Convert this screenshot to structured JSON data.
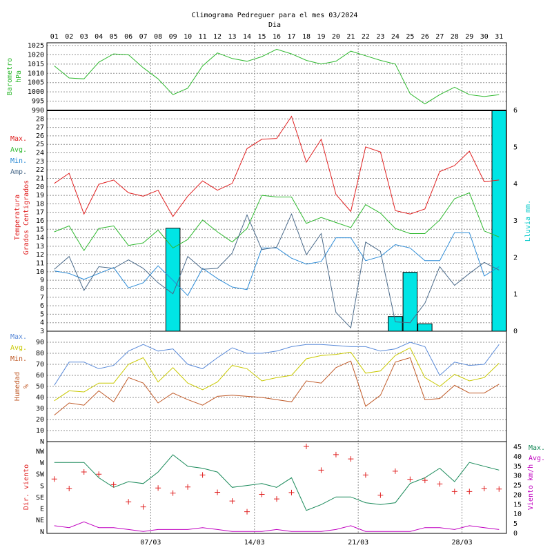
{
  "title": "Climograma Pedreguer para el mes 03/2024",
  "xaxis_label": "Dia",
  "colors": {
    "pressure": "#2eb82e",
    "temp_max": "#e02020",
    "temp_avg": "#2eb82e",
    "temp_min": "#2a8ad6",
    "temp_amp": "#4a6a8a",
    "rain_fill": "#00e5e5",
    "hum_max": "#5a8ad8",
    "hum_avg": "#c8c800",
    "hum_min": "#c05a28",
    "wind_dir": "#e02020",
    "wind_max": "#1a8a5a",
    "wind_avg": "#c000c0",
    "grid": "#909090",
    "frame": "#000000"
  },
  "chart_data": [
    {
      "type": "line",
      "name": "pressure",
      "title": "Climograma Pedreguer para el mes 03/2024",
      "xlabel": "Dia",
      "ylabel": "Barometro hPa",
      "x": [
        "01",
        "02",
        "03",
        "04",
        "05",
        "06",
        "07",
        "08",
        "09",
        "10",
        "11",
        "12",
        "13",
        "14",
        "15",
        "16",
        "17",
        "18",
        "19",
        "20",
        "21",
        "22",
        "23",
        "24",
        "25",
        "26",
        "27",
        "28",
        "29",
        "30",
        "31"
      ],
      "ylim": [
        990,
        1025
      ],
      "yticks": [
        990,
        995,
        1000,
        1005,
        1010,
        1015,
        1020,
        1025
      ],
      "series": [
        {
          "name": "Barometro",
          "values": [
            1014,
            1007.5,
            1007,
            1016,
            1020.5,
            1020,
            1013,
            1007,
            998.5,
            1002,
            1014,
            1021,
            1018,
            1016.5,
            1019,
            1023,
            1020.5,
            1017,
            1015,
            1016.5,
            1022,
            1019.5,
            1017,
            1015,
            999,
            993.5,
            998.5,
            1002.5,
            998.5,
            997.5,
            998.5
          ]
        }
      ]
    },
    {
      "type": "line",
      "name": "temperature",
      "ylabel": "Temperatura Grados Centigrados",
      "y2label": "Lluvia mm.",
      "x": [
        "01",
        "02",
        "03",
        "04",
        "05",
        "06",
        "07",
        "08",
        "09",
        "10",
        "11",
        "12",
        "13",
        "14",
        "15",
        "16",
        "17",
        "18",
        "19",
        "20",
        "21",
        "22",
        "23",
        "24",
        "25",
        "26",
        "27",
        "28",
        "29",
        "30",
        "31"
      ],
      "ylim": [
        3,
        29
      ],
      "y2lim": [
        0,
        6
      ],
      "yticks": [
        3,
        4,
        5,
        6,
        7,
        8,
        9,
        10,
        11,
        12,
        13,
        14,
        15,
        16,
        17,
        18,
        19,
        20,
        21,
        22,
        23,
        24,
        25,
        26,
        27,
        28
      ],
      "y2ticks": [
        0,
        1,
        2,
        3,
        4,
        5,
        6
      ],
      "legend": [
        "Max.",
        "Avg.",
        "Min.",
        "Amp."
      ],
      "series": [
        {
          "name": "Max.",
          "values": [
            20.4,
            21.6,
            16.8,
            20.3,
            20.8,
            19.3,
            18.9,
            19.6,
            16.5,
            18.9,
            20.7,
            19.6,
            20.4,
            24.5,
            25.6,
            25.7,
            28.3,
            22.9,
            25.6,
            19.1,
            17.1,
            24.7,
            24.1,
            17.2,
            16.8,
            17.4,
            21.8,
            22.5,
            24.2,
            20.6,
            20.8
          ]
        },
        {
          "name": "Avg.",
          "values": [
            14.7,
            15.4,
            12.5,
            15.1,
            15.4,
            13.1,
            13.4,
            14.9,
            12.8,
            13.8,
            16.1,
            14.7,
            13.5,
            15.1,
            19.0,
            18.8,
            18.8,
            15.7,
            16.4,
            15.8,
            15.2,
            17.9,
            16.9,
            15.1,
            14.5,
            14.5,
            16.1,
            18.6,
            19.3,
            14.8,
            14.1
          ]
        },
        {
          "name": "Min.",
          "values": [
            10.1,
            9.8,
            9.1,
            9.8,
            10.5,
            8.1,
            8.7,
            10.7,
            9.0,
            7.2,
            10.4,
            9.2,
            8.2,
            7.9,
            12.8,
            12.8,
            11.6,
            10.9,
            11.2,
            14.0,
            14.0,
            11.3,
            11.8,
            13.2,
            12.8,
            11.3,
            11.3,
            14.6,
            14.6,
            9.5,
            10.6
          ]
        },
        {
          "name": "Amp.",
          "values": [
            10.3,
            11.8,
            7.8,
            10.6,
            10.4,
            11.4,
            10.4,
            8.7,
            7.4,
            11.8,
            10.3,
            10.4,
            12.2,
            16.7,
            12.6,
            12.9,
            16.8,
            12.0,
            14.5,
            5.2,
            3.4,
            13.5,
            12.4,
            4.1,
            4.0,
            6.3,
            10.6,
            8.4,
            9.8,
            11.1,
            10.2
          ]
        }
      ],
      "bars": {
        "name": "Lluvia",
        "values": [
          0,
          0,
          0,
          0,
          0,
          0,
          0,
          0,
          2.8,
          0,
          0,
          0,
          0,
          0,
          0,
          0,
          0,
          0,
          0,
          0,
          0,
          0,
          0,
          0.4,
          1.6,
          0.2,
          0,
          0,
          0,
          0,
          6.0
        ]
      }
    },
    {
      "type": "line",
      "name": "humidity",
      "ylabel": "Humedad %",
      "x": [
        "01",
        "02",
        "03",
        "04",
        "05",
        "06",
        "07",
        "08",
        "09",
        "10",
        "11",
        "12",
        "13",
        "14",
        "15",
        "16",
        "17",
        "18",
        "19",
        "20",
        "21",
        "22",
        "23",
        "24",
        "25",
        "26",
        "27",
        "28",
        "29",
        "30",
        "31"
      ],
      "ylim": [
        0,
        100
      ],
      "yticks": [
        10,
        20,
        30,
        40,
        50,
        60,
        70,
        80,
        90
      ],
      "legend": [
        "Max.",
        "Avg.",
        "Min."
      ],
      "series": [
        {
          "name": "Max.",
          "values": [
            51,
            72,
            72,
            66,
            69,
            82,
            88,
            82,
            84,
            70,
            66,
            76,
            85,
            80,
            80,
            82,
            86,
            88,
            88,
            87,
            86,
            86,
            82,
            84,
            90,
            86,
            60,
            72,
            69,
            70,
            88
          ]
        },
        {
          "name": "Avg.",
          "values": [
            37,
            46,
            45,
            53,
            53,
            70,
            76,
            54,
            67,
            53,
            47,
            54,
            69,
            66,
            55,
            58,
            60,
            75,
            78,
            79,
            81,
            62,
            64,
            78,
            85,
            58,
            50,
            61,
            55,
            58,
            71
          ]
        },
        {
          "name": "Min.",
          "values": [
            24,
            35,
            33,
            46,
            36,
            58,
            53,
            35,
            44,
            38,
            33,
            41,
            42,
            41,
            40,
            38,
            36,
            55,
            53,
            67,
            73,
            32,
            42,
            72,
            76,
            38,
            39,
            51,
            44,
            44,
            52
          ]
        }
      ]
    },
    {
      "type": "scatter",
      "name": "wind",
      "ylabel": "Dir. viento",
      "y2label": "Viento km/h",
      "x": [
        "01",
        "02",
        "03",
        "04",
        "05",
        "06",
        "07",
        "08",
        "09",
        "10",
        "11",
        "12",
        "13",
        "14",
        "15",
        "16",
        "17",
        "18",
        "19",
        "20",
        "21",
        "22",
        "23",
        "24",
        "25",
        "26",
        "27",
        "28",
        "29",
        "30",
        "31"
      ],
      "xticks": [
        "07/03",
        "14/03",
        "21/03",
        "28/03"
      ],
      "ycategories": [
        "N",
        "NE",
        "E",
        "SE",
        "S",
        "SW",
        "W",
        "NW"
      ],
      "ylim": [
        0,
        360
      ],
      "y2lim": [
        0,
        45
      ],
      "y2ticks": [
        0,
        5,
        10,
        15,
        20,
        25,
        30,
        35,
        40,
        45
      ],
      "legend": [
        "Max.",
        "Avg."
      ],
      "direction_degrees": [
        213,
        176,
        241,
        232,
        191,
        124,
        104,
        178,
        158,
        182,
        229,
        161,
        127,
        85,
        153,
        135,
        160,
        341,
        248,
        309,
        292,
        229,
        150,
        244,
        212,
        208,
        194,
        164,
        164,
        176,
        174
      ],
      "series": [
        {
          "name": "Max.",
          "values": [
            37,
            37,
            37,
            29,
            24,
            27,
            26,
            32,
            41,
            35,
            34,
            32,
            24,
            25,
            26,
            24,
            29,
            12,
            15,
            19,
            19,
            16,
            15,
            16,
            26,
            29,
            34,
            27,
            37,
            35,
            33
          ]
        },
        {
          "name": "Avg.",
          "values": [
            4,
            3,
            6,
            3,
            3,
            2,
            1,
            2,
            2,
            2,
            3,
            2,
            1,
            1,
            1,
            2,
            1,
            1,
            1,
            2,
            4,
            1,
            1,
            1,
            1,
            3,
            3,
            2,
            4,
            3,
            2
          ]
        }
      ]
    }
  ]
}
